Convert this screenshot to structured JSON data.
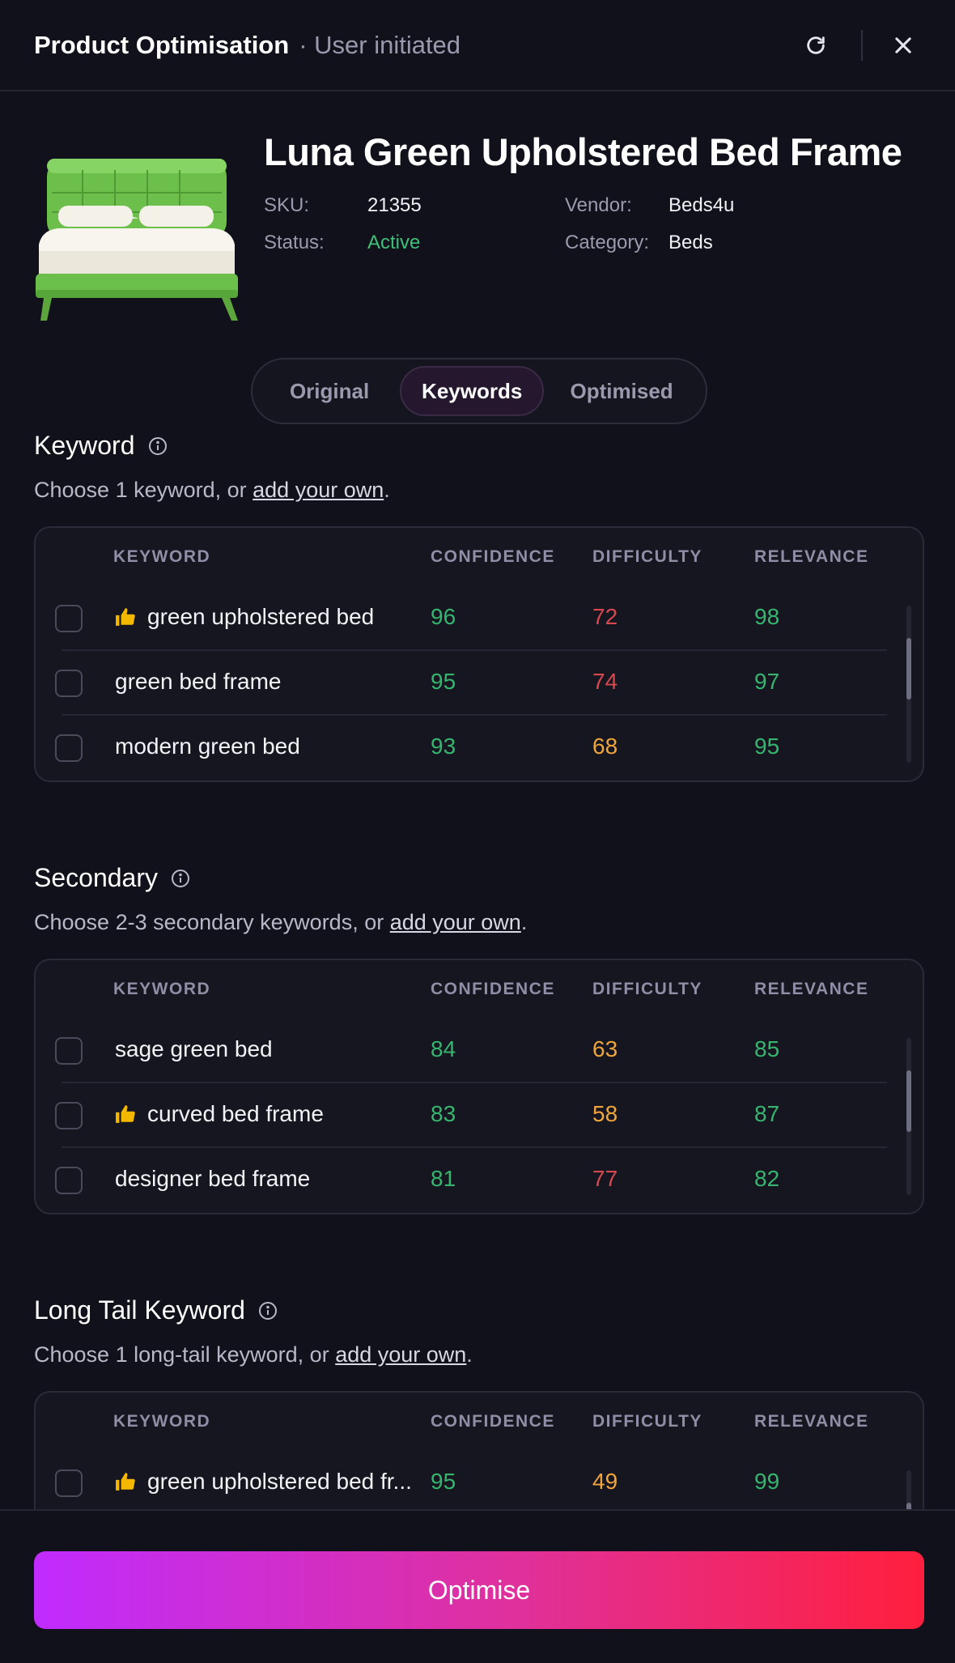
{
  "header": {
    "title": "Product Optimisation",
    "subtitle": "· User initiated",
    "refresh_icon": "refresh-icon",
    "close_icon": "close-icon"
  },
  "product": {
    "image_icon": "green-bed-image",
    "name": "Luna Green Upholstered Bed Frame",
    "sku_label": "SKU:",
    "sku": "21355",
    "status_label": "Status:",
    "status": "Active",
    "vendor_label": "Vendor:",
    "vendor": "Beds4u",
    "category_label": "Category:",
    "category": "Beds"
  },
  "tabs": [
    {
      "label": "Original",
      "active": false
    },
    {
      "label": "Keywords",
      "active": true
    },
    {
      "label": "Optimised",
      "active": false
    }
  ],
  "columns": {
    "keyword": "KEYWORD",
    "confidence": "CONFIDENCE",
    "difficulty": "DIFFICULTY",
    "relevance": "RELEVANCE"
  },
  "sections": [
    {
      "title": "Keyword",
      "desc_prefix": "Choose 1 keyword, or ",
      "link": "add your own",
      "desc_suffix": ".",
      "rows": [
        {
          "keyword": "green upholstered bed",
          "recommended": true,
          "confidence": "96",
          "difficulty": "72",
          "relevance": "98"
        },
        {
          "keyword": "green bed frame",
          "recommended": false,
          "confidence": "95",
          "difficulty": "74",
          "relevance": "97"
        },
        {
          "keyword": "modern green bed",
          "recommended": false,
          "confidence": "93",
          "difficulty": "68",
          "relevance": "95"
        }
      ]
    },
    {
      "title": "Secondary",
      "desc_prefix": "Choose 2-3 secondary keywords, or ",
      "link": "add your own",
      "desc_suffix": ".",
      "rows": [
        {
          "keyword": "sage green bed",
          "recommended": false,
          "confidence": "84",
          "difficulty": "63",
          "relevance": "85"
        },
        {
          "keyword": "curved bed frame",
          "recommended": true,
          "confidence": "83",
          "difficulty": "58",
          "relevance": "87"
        },
        {
          "keyword": "designer bed frame",
          "recommended": false,
          "confidence": "81",
          "difficulty": "77",
          "relevance": "82"
        }
      ]
    },
    {
      "title": "Long Tail Keyword",
      "desc_prefix": "Choose 1 long-tail keyword, or ",
      "link": "add your own",
      "desc_suffix": ".",
      "rows": [
        {
          "keyword": "green upholstered bed fr...",
          "recommended": true,
          "confidence": "95",
          "difficulty": "49",
          "relevance": "99"
        }
      ]
    }
  ],
  "colors": {
    "good": "#36b56e",
    "medium": "#f0a53c",
    "bad": "#d9484e",
    "thumb": "#f5b800",
    "button_gradient": [
      "#c02cff",
      "#ff1f3d"
    ]
  },
  "footer": {
    "optimise_label": "Optimise"
  }
}
